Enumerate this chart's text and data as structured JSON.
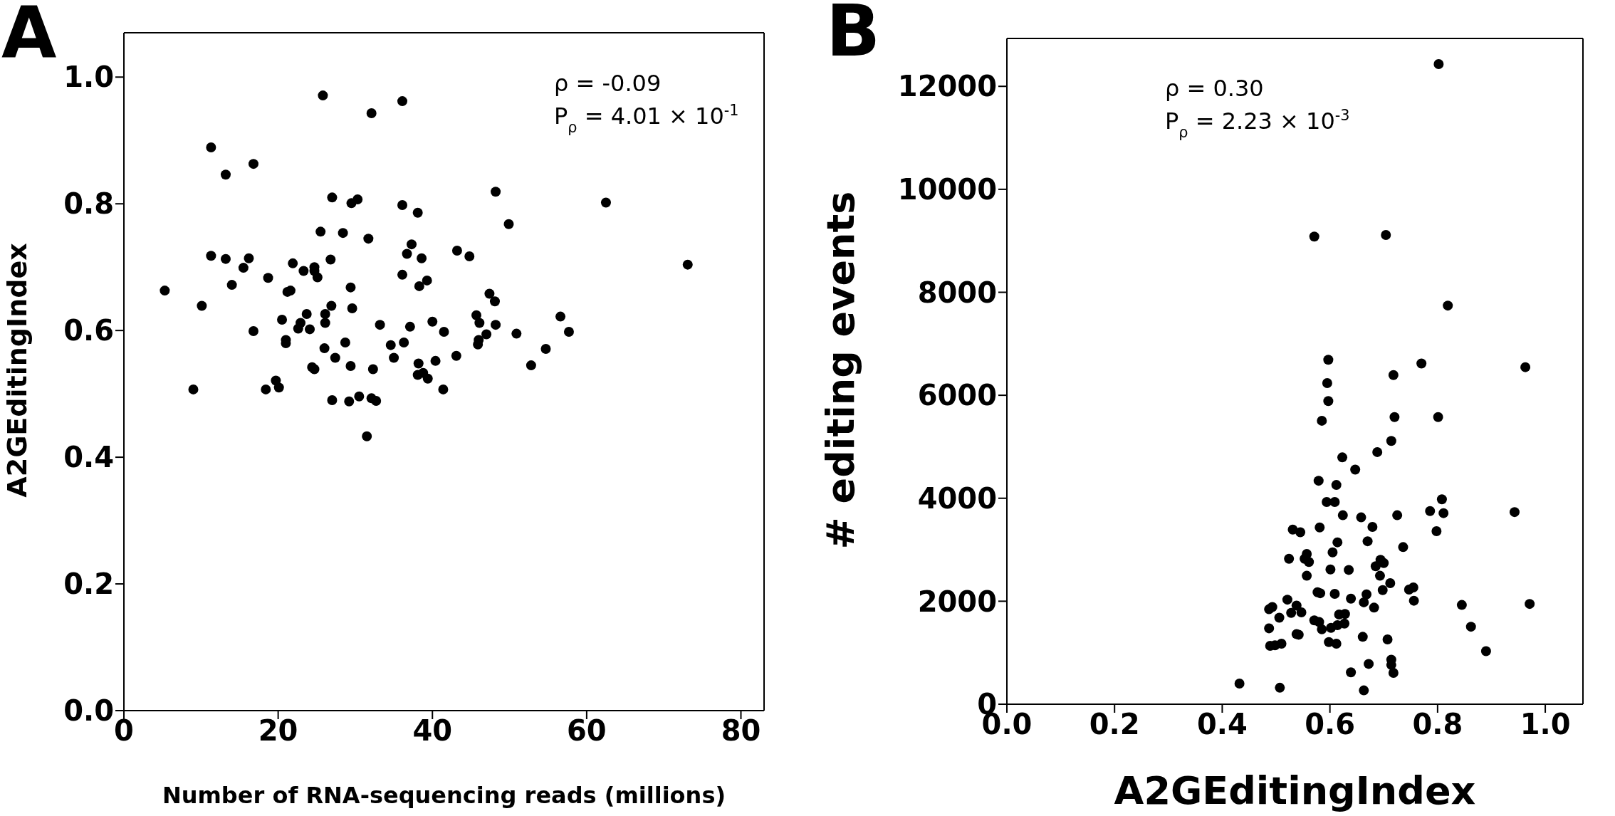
{
  "chart_data": [
    {
      "type": "scatter",
      "title": "A",
      "xlabel": "Number of RNA-sequencing reads (millions)",
      "ylabel": "A2GEditingIndex",
      "color": "#000000",
      "marker": "circle",
      "annotations": [
        "ρ = -0.09",
        "P$_{ρ}$ = 4.01 × 10$^{-1}$"
      ],
      "xlim": [
        0,
        83
      ],
      "ylim": [
        0,
        1.07
      ],
      "xticks": [
        0,
        20,
        40,
        60,
        80
      ],
      "yticks": [
        {
          "value": 0,
          "label": "0.0"
        },
        {
          "value": 0.2,
          "label": "0.2"
        },
        {
          "value": 0.4,
          "label": "0.4"
        },
        {
          "value": 0.6,
          "label": "0.6"
        },
        {
          "value": 0.8,
          "label": "0.8"
        },
        {
          "value": 1.0,
          "label": "1.0"
        }
      ],
      "x": [
        5.3,
        9.0,
        10.1,
        11.3,
        11.3,
        13.2,
        13.2,
        14.0,
        15.5,
        16.2,
        16.8,
        16.8,
        18.4,
        18.7,
        19.7,
        20.1,
        20.5,
        21.0,
        21.0,
        21.2,
        21.6,
        21.9,
        22.6,
        22.9,
        23.3,
        23.7,
        24.1,
        24.4,
        24.7,
        24.7,
        24.7,
        25.1,
        25.5,
        25.8,
        26.1,
        26.1,
        26.0,
        26.8,
        26.9,
        27.0,
        27.0,
        27.4,
        28.4,
        28.7,
        29.2,
        29.4,
        29.4,
        29.5,
        29.6,
        30.3,
        30.5,
        31.5,
        31.7,
        32.1,
        32.1,
        32.3,
        32.7,
        33.2,
        34.6,
        35.0,
        36.1,
        36.1,
        36.1,
        36.3,
        37.1,
        37.3,
        36.7,
        38.1,
        38.2,
        38.1,
        38.6,
        38.3,
        38.8,
        39.3,
        39.4,
        40.0,
        40.4,
        41.4,
        41.5,
        43.1,
        43.2,
        44.8,
        45.7,
        45.9,
        46.0,
        46.1,
        47.0,
        47.4,
        48.1,
        48.2,
        48.2,
        49.9,
        50.9,
        52.8,
        54.7,
        56.6,
        57.7,
        62.5,
        73.1
      ],
      "values": [
        0.663,
        0.507,
        0.639,
        0.889,
        0.718,
        0.846,
        0.713,
        0.672,
        0.699,
        0.714,
        0.863,
        0.599,
        0.507,
        0.683,
        0.521,
        0.51,
        0.617,
        0.585,
        0.58,
        0.661,
        0.663,
        0.706,
        0.603,
        0.612,
        0.694,
        0.626,
        0.602,
        0.542,
        0.539,
        0.7,
        0.694,
        0.684,
        0.756,
        0.971,
        0.626,
        0.612,
        0.572,
        0.712,
        0.639,
        0.81,
        0.49,
        0.557,
        0.754,
        0.581,
        0.488,
        0.668,
        0.544,
        0.801,
        0.635,
        0.807,
        0.496,
        0.433,
        0.745,
        0.943,
        0.493,
        0.539,
        0.489,
        0.609,
        0.577,
        0.557,
        0.962,
        0.798,
        0.688,
        0.581,
        0.606,
        0.736,
        0.721,
        0.786,
        0.548,
        0.53,
        0.714,
        0.67,
        0.533,
        0.679,
        0.524,
        0.614,
        0.552,
        0.507,
        0.598,
        0.56,
        0.726,
        0.717,
        0.624,
        0.578,
        0.585,
        0.612,
        0.594,
        0.658,
        0.646,
        0.819,
        0.609,
        0.768,
        0.595,
        0.545,
        0.571,
        0.622,
        0.598,
        0.802,
        0.704
      ]
    },
    {
      "type": "scatter",
      "title": "B",
      "xlabel": "A2GEditingIndex",
      "ylabel": "# editing events",
      "color": "#000000",
      "marker": "circle",
      "annotations": [
        "ρ = 0.30",
        "P$_{ρ}$ = 2.23 × 10$^{-3}$"
      ],
      "xlim": [
        0,
        1.07
      ],
      "ylim": [
        0,
        12930
      ],
      "xticks": [
        {
          "value": 0,
          "label": "0.0"
        },
        {
          "value": 0.2,
          "label": "0.2"
        },
        {
          "value": 0.4,
          "label": "0.4"
        },
        {
          "value": 0.6,
          "label": "0.6"
        },
        {
          "value": 0.8,
          "label": "0.8"
        },
        {
          "value": 1.0,
          "label": "1.0"
        }
      ],
      "yticks": [
        0,
        2000,
        4000,
        6000,
        8000,
        10000,
        12000
      ],
      "x": [
        0.802,
        0.571,
        0.704,
        0.819,
        0.597,
        0.77,
        0.963,
        0.718,
        0.595,
        0.597,
        0.585,
        0.72,
        0.801,
        0.714,
        0.688,
        0.623,
        0.647,
        0.579,
        0.612,
        0.594,
        0.609,
        0.808,
        0.624,
        0.658,
        0.725,
        0.786,
        0.811,
        0.943,
        0.679,
        0.581,
        0.531,
        0.545,
        0.798,
        0.614,
        0.67,
        0.736,
        0.605,
        0.557,
        0.524,
        0.553,
        0.561,
        0.694,
        0.7,
        0.601,
        0.635,
        0.685,
        0.557,
        0.693,
        0.712,
        0.747,
        0.755,
        0.698,
        0.577,
        0.582,
        0.609,
        0.668,
        0.639,
        0.663,
        0.756,
        0.845,
        0.971,
        0.521,
        0.487,
        0.493,
        0.538,
        0.528,
        0.547,
        0.682,
        0.617,
        0.628,
        0.506,
        0.571,
        0.58,
        0.627,
        0.614,
        0.602,
        0.585,
        0.487,
        0.862,
        0.538,
        0.542,
        0.661,
        0.707,
        0.598,
        0.612,
        0.489,
        0.498,
        0.51,
        0.89,
        0.714,
        0.714,
        0.718,
        0.672,
        0.639,
        0.432,
        0.507,
        0.663
      ],
      "values": [
        12433,
        9082,
        9113,
        7742,
        6690,
        6618,
        6546,
        6392,
        6237,
        5887,
        5505,
        5577,
        5577,
        5113,
        4897,
        4794,
        4557,
        4340,
        4258,
        3928,
        3928,
        3979,
        3670,
        3629,
        3670,
        3752,
        3711,
        3732,
        3443,
        3433,
        3392,
        3340,
        3361,
        3144,
        3165,
        3051,
        2948,
        2917,
        2825,
        2825,
        2763,
        2804,
        2742,
        2618,
        2608,
        2680,
        2495,
        2495,
        2350,
        2227,
        2268,
        2216,
        2175,
        2155,
        2144,
        2134,
        2051,
        1979,
        2010,
        1928,
        1948,
        2031,
        1845,
        1887,
        1917,
        1773,
        1783,
        1876,
        1742,
        1753,
        1680,
        1629,
        1598,
        1567,
        1536,
        1484,
        1454,
        1474,
        1505,
        1361,
        1350,
        1309,
        1258,
        1206,
        1175,
        1134,
        1144,
        1175,
        1031,
        866,
        763,
        608,
        783,
        619,
        402,
        320,
        268
      ]
    }
  ]
}
